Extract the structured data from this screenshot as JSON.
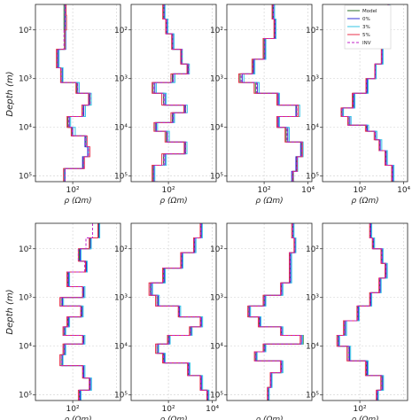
{
  "chart_data": {
    "type": "line",
    "layout_grid": {
      "rows": 2,
      "cols": 4
    },
    "shared": {
      "ylabel": "Depth (m)",
      "xlabel": "ρ (Ωm)",
      "y_scale": "log",
      "y_inverted": true,
      "ylim": [
        30,
        130000
      ],
      "x_scale": "log",
      "xlim": [
        2,
        15000
      ],
      "y_tick_labels": [
        "10²",
        "10³",
        "10⁴",
        "10⁵"
      ],
      "y_tick_values": [
        100,
        1000,
        10000,
        100000
      ],
      "grid": true
    },
    "legend": {
      "placement": "top-right of panel 4",
      "entries": [
        {
          "name": "Model",
          "color": "#2a6e2a",
          "dash": "solid"
        },
        {
          "name": "0%",
          "color": "#2f2fd6",
          "dash": "solid"
        },
        {
          "name": "3%",
          "color": "#35c4e6",
          "dash": "solid"
        },
        {
          "name": "5%",
          "color": "#e8324b",
          "dash": "solid"
        },
        {
          "name": "INV",
          "color": "#c021c9",
          "dash": "dashed"
        }
      ]
    },
    "panels": [
      {
        "x_tick_labels": [
          "10²"
        ],
        "x_tick_values": [
          100
        ],
        "depths": [
          30,
          50,
          100,
          250,
          600,
          1200,
          2000,
          3500,
          6000,
          10000,
          15000,
          25000,
          40000,
          70000,
          130000
        ],
        "series": [
          {
            "name": "Model",
            "values": [
              40,
              40,
              42,
              20,
              30,
              150,
              600,
              300,
              60,
              90,
              400,
              500,
              300,
              40,
              40
            ]
          },
          {
            "name": "0%",
            "values": [
              45,
              45,
              48,
              22,
              34,
              170,
              560,
              320,
              70,
              100,
              360,
              480,
              280,
              45,
              45
            ]
          },
          {
            "name": "3%",
            "values": [
              48,
              50,
              46,
              24,
              36,
              200,
              700,
              380,
              80,
              130,
              420,
              520,
              320,
              42,
              42
            ]
          },
          {
            "name": "5%",
            "values": [
              50,
              52,
              44,
              18,
              28,
              140,
              520,
              260,
              55,
              85,
              450,
              600,
              340,
              38,
              38
            ]
          },
          {
            "name": "INV",
            "values": [
              44,
              44,
              40,
              20,
              30,
              160,
              620,
              290,
              65,
              95,
              390,
              520,
              310,
              44,
              44
            ]
          }
        ]
      },
      {
        "x_tick_labels": [
          "10²"
        ],
        "x_tick_values": [
          100
        ],
        "depths": [
          30,
          60,
          120,
          250,
          500,
          800,
          1200,
          2000,
          3500,
          5000,
          8000,
          12000,
          20000,
          35000,
          60000,
          130000
        ],
        "series": [
          {
            "name": "Model",
            "values": [
              60,
              80,
              150,
              400,
              800,
              150,
              20,
              60,
              600,
              150,
              25,
              80,
              600,
              60,
              20,
              30
            ]
          },
          {
            "name": "0%",
            "values": [
              65,
              85,
              160,
              380,
              760,
              170,
              24,
              70,
              560,
              170,
              28,
              90,
              560,
              70,
              22,
              32
            ]
          },
          {
            "name": "3%",
            "values": [
              70,
              95,
              180,
              430,
              900,
              200,
              28,
              80,
              720,
              190,
              32,
              110,
              700,
              80,
              24,
              30
            ]
          },
          {
            "name": "5%",
            "values": [
              55,
              75,
              140,
              360,
              700,
              130,
              18,
              50,
              500,
              130,
              22,
              70,
              520,
              50,
              18,
              28
            ]
          },
          {
            "name": "INV",
            "values": [
              62,
              82,
              155,
              410,
              820,
              160,
              21,
              62,
              610,
              155,
              26,
              85,
              610,
              62,
              21,
              30
            ]
          }
        ]
      },
      {
        "x_tick_labels": [
          "10²",
          "10⁴"
        ],
        "x_tick_values": [
          100,
          10000
        ],
        "depths": [
          30,
          60,
          150,
          400,
          800,
          1200,
          2000,
          3500,
          6000,
          10000,
          20000,
          40000,
          80000,
          130000
        ],
        "series": [
          {
            "name": "Model",
            "values": [
              250,
              300,
              100,
              30,
              8,
              40,
              400,
              3000,
              400,
              1000,
              5000,
              3000,
              2000,
              2500
            ]
          },
          {
            "name": "0%",
            "values": [
              270,
              320,
              110,
              34,
              10,
              50,
              450,
              2800,
              450,
              1200,
              4600,
              2800,
              1800,
              2300
            ]
          },
          {
            "name": "3%",
            "values": [
              300,
              350,
              120,
              38,
              12,
              60,
              500,
              4200,
              500,
              1400,
              6000,
              3400,
              2200,
              2700
            ]
          },
          {
            "name": "5%",
            "values": [
              230,
              280,
              90,
              28,
              7,
              35,
              380,
              3600,
              380,
              900,
              5500,
              3200,
              2100,
              2400
            ]
          },
          {
            "name": "INV",
            "values": [
              260,
              310,
              105,
              32,
              9,
              45,
              420,
              3100,
              420,
              1100,
              5200,
              3100,
              2000,
              2500
            ]
          }
        ]
      },
      {
        "x_tick_labels": [
          "10²",
          "10⁴"
        ],
        "x_tick_values": [
          100,
          10000
        ],
        "depths": [
          30,
          80,
          200,
          500,
          1000,
          2000,
          4000,
          6000,
          9000,
          12000,
          18000,
          30000,
          60000,
          130000
        ],
        "series": [
          {
            "name": "Model",
            "values": [
              2000,
              1500,
              1000,
              500,
              200,
              50,
              15,
              30,
              200,
              500,
              800,
              1500,
              3000,
              5000
            ]
          },
          {
            "name": "0%",
            "values": [
              2100,
              1600,
              1050,
              520,
              220,
              55,
              17,
              35,
              220,
              520,
              850,
              1600,
              3200,
              5200
            ]
          },
          {
            "name": "3%",
            "values": [
              2300,
              1750,
              1150,
              560,
              240,
              60,
              18,
              40,
              250,
              600,
              1000,
              1800,
              3600,
              6000
            ]
          },
          {
            "name": "5%",
            "values": [
              1900,
              1400,
              950,
              480,
              190,
              45,
              14,
              28,
              180,
              450,
              750,
              1400,
              2800,
              4700
            ]
          },
          {
            "name": "INV",
            "values": [
              2000,
              1500,
              1000,
              500,
              200,
              50,
              15,
              30,
              200,
              500,
              800,
              1500,
              3000,
              5000
            ]
          }
        ]
      },
      {
        "x_tick_labels": [
          "10²"
        ],
        "x_tick_values": [
          100
        ],
        "depths": [
          30,
          60,
          100,
          180,
          300,
          600,
          1000,
          1500,
          2500,
          4000,
          6000,
          9000,
          15000,
          25000,
          45000,
          80000,
          130000
        ],
        "series": [
          {
            "name": "Model",
            "values": [
              1500,
              600,
              200,
              400,
              60,
              300,
              30,
              250,
              60,
              40,
              300,
              40,
              30,
              300,
              600,
              200,
              250
            ]
          },
          {
            "name": "0%",
            "values": [
              1600,
              650,
              220,
              420,
              66,
              320,
              34,
              270,
              66,
              44,
              320,
              44,
              34,
              320,
              640,
              220,
              260
            ]
          },
          {
            "name": "3%",
            "values": [
              1700,
              700,
              240,
              460,
              72,
              360,
              38,
              300,
              72,
              48,
              360,
              48,
              36,
              360,
              720,
              240,
              280
            ]
          },
          {
            "name": "5%",
            "values": [
              1400,
              560,
              180,
              380,
              54,
              280,
              26,
              230,
              54,
              36,
              280,
              36,
              26,
              280,
              560,
              180,
              230
            ]
          },
          {
            "name": "INV",
            "values": [
              800,
              400,
              180,
              350,
              60,
              280,
              30,
              240,
              60,
              40,
              290,
              40,
              30,
              290,
              580,
              200,
              240
            ]
          }
        ]
      },
      {
        "x_tick_labels": [
          "10²",
          "10⁴"
        ],
        "x_tick_values": [
          100,
          10000
        ],
        "depths": [
          30,
          60,
          120,
          250,
          500,
          900,
          1500,
          2500,
          4000,
          6000,
          9000,
          14000,
          22000,
          40000,
          80000,
          130000
        ],
        "series": [
          {
            "name": "Model",
            "values": [
              3000,
              1500,
              400,
              60,
              15,
              30,
              300,
              3000,
              1000,
              100,
              30,
              60,
              800,
              3000,
              6000,
              6000
            ]
          },
          {
            "name": "0%",
            "values": [
              3200,
              1600,
              420,
              66,
              17,
              34,
              320,
              3200,
              1100,
              110,
              34,
              66,
              860,
              3200,
              6400,
              6400
            ]
          },
          {
            "name": "3%",
            "values": [
              3500,
              1800,
              460,
              72,
              19,
              38,
              360,
              3600,
              1200,
              120,
              36,
              72,
              960,
              3600,
              7000,
              7000
            ]
          },
          {
            "name": "5%",
            "values": [
              2800,
              1400,
              360,
              54,
              13,
              26,
              280,
              2800,
              900,
              90,
              26,
              54,
              740,
              2800,
              5600,
              5600
            ]
          },
          {
            "name": "INV",
            "values": [
              3000,
              1500,
              400,
              60,
              15,
              30,
              300,
              3000,
              1000,
              100,
              30,
              60,
              800,
              3000,
              6000,
              6000
            ]
          }
        ]
      },
      {
        "x_tick_labels": [],
        "x_tick_values": [],
        "depths": [
          30,
          60,
          120,
          250,
          500,
          900,
          1500,
          2500,
          4000,
          6000,
          9000,
          13000,
          20000,
          35000,
          70000,
          130000
        ],
        "series": [
          {
            "name": "Model",
            "values": [
              2000,
              2500,
              1500,
              1500,
              600,
              100,
              20,
              60,
              600,
              6000,
              100,
              40,
              600,
              200,
              150,
              150
            ]
          },
          {
            "name": "0%",
            "values": [
              2100,
              2600,
              1600,
              1600,
              640,
              110,
              22,
              66,
              640,
              5000,
              110,
              44,
              640,
              210,
              160,
              160
            ]
          },
          {
            "name": "3%",
            "values": [
              2300,
              2800,
              1800,
              1800,
              720,
              120,
              24,
              72,
              720,
              5600,
              120,
              48,
              720,
              230,
              170,
              170
            ]
          },
          {
            "name": "5%",
            "values": [
              1800,
              2300,
              1400,
              1400,
              560,
              90,
              18,
              54,
              560,
              4400,
              90,
              36,
              560,
              190,
              140,
              140
            ]
          },
          {
            "name": "INV",
            "values": [
              2000,
              2500,
              1500,
              1500,
              600,
              100,
              20,
              60,
              600,
              5000,
              100,
              40,
              600,
              200,
              150,
              150
            ]
          }
        ]
      },
      {
        "x_tick_labels": [
          "10²"
        ],
        "x_tick_values": [
          100
        ],
        "depths": [
          30,
          60,
          100,
          200,
          400,
          800,
          1500,
          3000,
          6000,
          10000,
          20000,
          40000,
          80000,
          130000
        ],
        "series": [
          {
            "name": "Model",
            "values": [
              300,
              400,
              1000,
              1500,
              800,
              300,
              80,
              20,
              10,
              30,
              200,
              1000,
              600,
              300
            ]
          },
          {
            "name": "0%",
            "values": [
              320,
              430,
              1050,
              1600,
              860,
              320,
              86,
              22,
              11,
              34,
              220,
              1100,
              640,
              320
            ]
          },
          {
            "name": "3%",
            "values": [
              350,
              470,
              1150,
              1800,
              940,
              350,
              94,
              25,
              12,
              38,
              240,
              1200,
              700,
              350
            ]
          },
          {
            "name": "5%",
            "values": [
              280,
              370,
              920,
              1400,
              740,
              280,
              74,
              18,
              9,
              26,
              180,
              900,
              560,
              280
            ]
          },
          {
            "name": "INV",
            "values": [
              300,
              400,
              1000,
              1500,
              800,
              300,
              80,
              20,
              10,
              30,
              200,
              1000,
              600,
              300
            ]
          }
        ]
      }
    ]
  }
}
